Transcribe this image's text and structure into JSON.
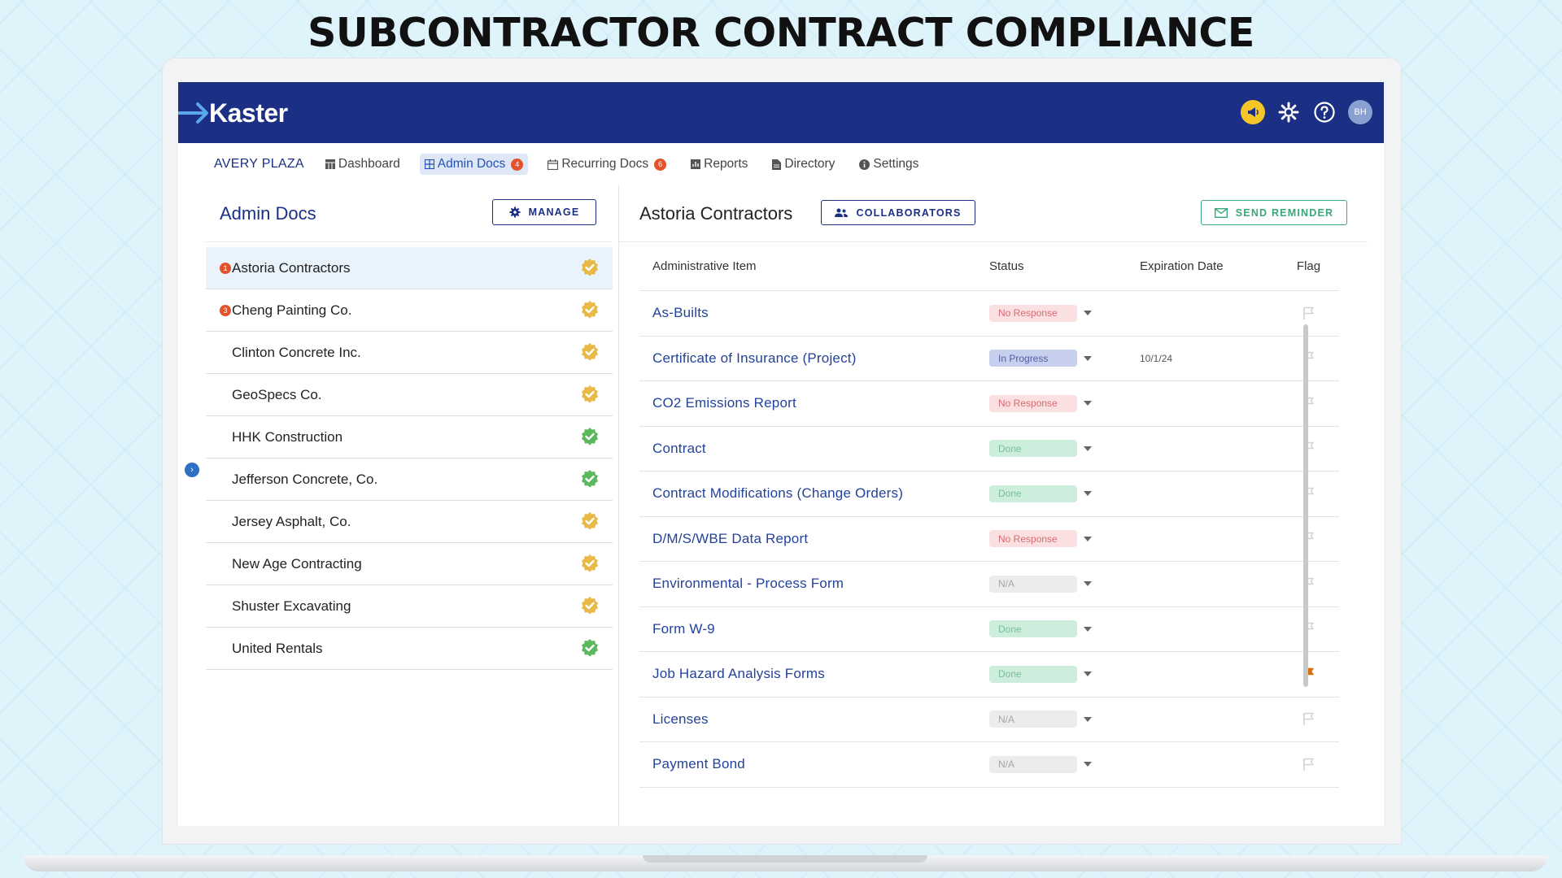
{
  "page": {
    "heading": "SUBCONTRACTOR CONTRACT COMPLIANCE"
  },
  "app": {
    "logo_text": "Kaster",
    "avatar_initials": "BH",
    "colors": {
      "brand": "#1b2f85",
      "alert": "#e2522b",
      "flag_active": "#d4700f",
      "verified_gold": "#e8b944",
      "verified_green": "#5cb85c"
    }
  },
  "nav": {
    "project": "AVERY PLAZA",
    "items": [
      {
        "label": "Dashboard",
        "icon": "dashboard-icon"
      },
      {
        "label": "Admin Docs",
        "icon": "grid-icon",
        "badge": "4",
        "active": true
      },
      {
        "label": "Recurring Docs",
        "icon": "calendar-icon",
        "badge": "6"
      },
      {
        "label": "Reports",
        "icon": "report-icon"
      },
      {
        "label": "Directory",
        "icon": "document-icon"
      },
      {
        "label": "Settings",
        "icon": "info-icon"
      }
    ]
  },
  "left": {
    "title": "Admin Docs",
    "manage_label": "MANAGE",
    "companies": [
      {
        "name": "Astoria Contractors",
        "alert": "1",
        "verified": "gold",
        "selected": true
      },
      {
        "name": "Cheng Painting Co.",
        "alert": "3",
        "verified": "gold"
      },
      {
        "name": "Clinton Concrete Inc.",
        "verified": "gold"
      },
      {
        "name": "GeoSpecs Co.",
        "verified": "gold"
      },
      {
        "name": "HHK Construction",
        "verified": "green"
      },
      {
        "name": "Jefferson Concrete, Co.",
        "verified": "green"
      },
      {
        "name": "Jersey Asphalt, Co.",
        "verified": "gold"
      },
      {
        "name": "New Age Contracting",
        "verified": "gold"
      },
      {
        "name": "Shuster Excavating",
        "verified": "gold"
      },
      {
        "name": "United Rentals",
        "verified": "green"
      }
    ]
  },
  "right": {
    "title": "Astoria Contractors",
    "collab_label": "COLLABORATORS",
    "reminder_label": "SEND REMINDER",
    "columns": {
      "item": "Administrative Item",
      "status": "Status",
      "expiration": "Expiration Date",
      "flag": "Flag"
    },
    "rows": [
      {
        "item": "As-Builts",
        "status": "No Response",
        "kind": "noresp",
        "expiration": "",
        "flagged": false
      },
      {
        "item": "Certificate of Insurance (Project)",
        "status": "In Progress",
        "kind": "prog",
        "expiration": "10/1/24",
        "flagged": false
      },
      {
        "item": "CO2 Emissions Report",
        "status": "No Response",
        "kind": "noresp",
        "expiration": "",
        "flagged": false
      },
      {
        "item": "Contract",
        "status": "Done",
        "kind": "done",
        "expiration": "",
        "flagged": false
      },
      {
        "item": "Contract Modifications (Change Orders)",
        "status": "Done",
        "kind": "done",
        "expiration": "",
        "flagged": false
      },
      {
        "item": "D/M/S/WBE Data Report",
        "status": "No Response",
        "kind": "noresp",
        "expiration": "",
        "flagged": false
      },
      {
        "item": "Environmental - Process Form",
        "status": "N/A",
        "kind": "na",
        "expiration": "",
        "flagged": false
      },
      {
        "item": "Form W-9",
        "status": "Done",
        "kind": "done",
        "expiration": "",
        "flagged": false
      },
      {
        "item": "Job Hazard Analysis Forms",
        "status": "Done",
        "kind": "done",
        "expiration": "",
        "flagged": true
      },
      {
        "item": "Licenses",
        "status": "N/A",
        "kind": "na",
        "expiration": "",
        "flagged": false
      },
      {
        "item": "Payment Bond",
        "status": "N/A",
        "kind": "na",
        "expiration": "",
        "flagged": false
      }
    ]
  }
}
